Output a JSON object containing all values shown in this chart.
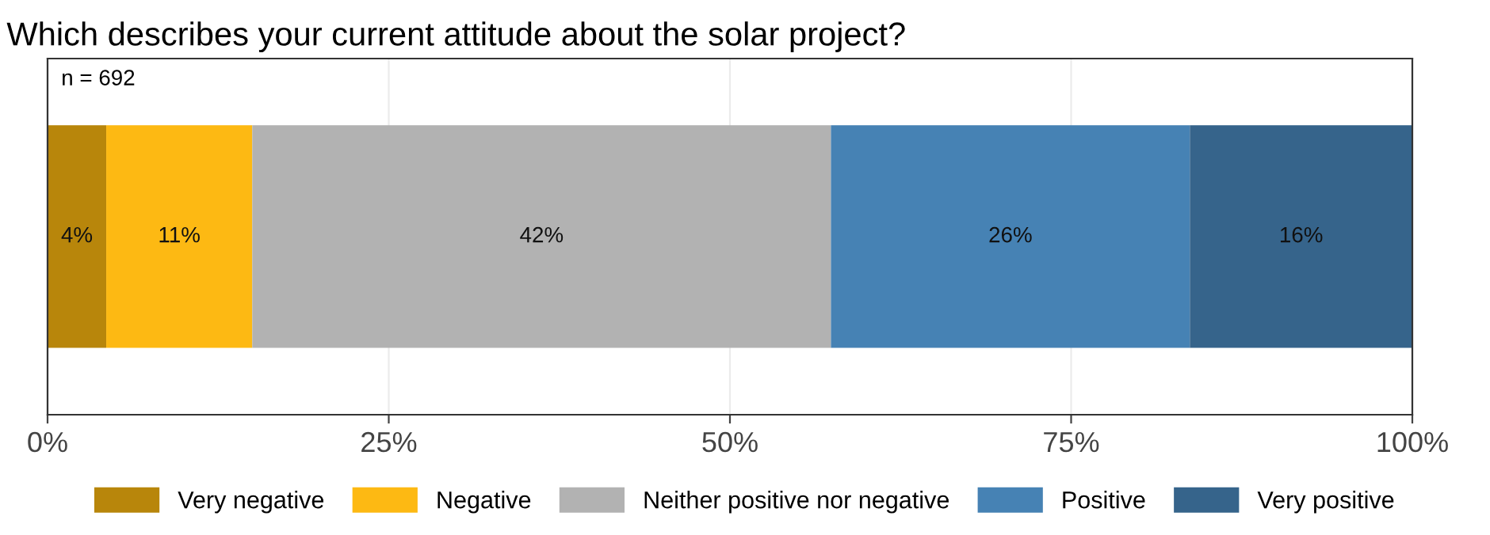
{
  "chart_data": {
    "type": "bar",
    "orientation": "horizontal",
    "stacked": true,
    "title": "Which describes your current attitude about the solar project?",
    "annotations": [
      "n = 692"
    ],
    "categories": [
      null
    ],
    "series": [
      {
        "name": "Very negative",
        "color": "#b8860b",
        "values": [
          4.3
        ],
        "value_labels": [
          "4%"
        ]
      },
      {
        "name": "Negative",
        "color": "#fdb913",
        "values": [
          10.7
        ],
        "value_labels": [
          "11%"
        ]
      },
      {
        "name": "Neither positive nor negative",
        "color": "#b2b2b2",
        "values": [
          42.4
        ],
        "value_labels": [
          "42%"
        ]
      },
      {
        "name": "Positive",
        "color": "#4682b4",
        "values": [
          26.3
        ],
        "value_labels": [
          "26%"
        ]
      },
      {
        "name": "Very positive",
        "color": "#36648b",
        "values": [
          16.3
        ],
        "value_labels": [
          "16%"
        ]
      }
    ],
    "xlim": [
      0,
      100
    ],
    "xticks": [
      {
        "value": 0,
        "label": "0%"
      },
      {
        "value": 25,
        "label": "25%"
      },
      {
        "value": 50,
        "label": "50%"
      },
      {
        "value": 75,
        "label": "75%"
      },
      {
        "value": 100,
        "label": "100%"
      }
    ],
    "grid": "x",
    "legend": "bottom",
    "tick_labels": "x"
  }
}
